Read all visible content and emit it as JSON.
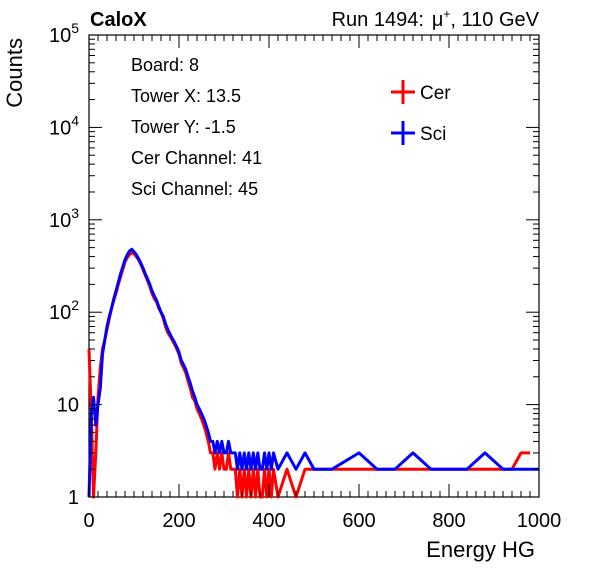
{
  "header": {
    "experiment": "CaloX",
    "run": "Run 1494:",
    "beam_particle": "μ",
    "beam_charge": "+",
    "beam_energy": ", 110 GeV"
  },
  "info_box": {
    "lines": [
      "Board: 8",
      "Tower X: 13.5",
      "Tower Y: -1.5",
      "Cer Channel: 41",
      "Sci Channel: 45"
    ]
  },
  "colors": {
    "cer": "#ff0000",
    "sci": "#0000ff",
    "axis": "#000000"
  },
  "chart_data": {
    "type": "line",
    "title": "",
    "xlabel": "Energy HG",
    "ylabel": "Counts",
    "xlim": [
      0,
      1000
    ],
    "ylim": [
      1,
      100000
    ],
    "y_scale": "log",
    "grid": false,
    "legend_position": "top-right",
    "x_ticks": [
      "0",
      "200",
      "400",
      "600",
      "800",
      "1000"
    ],
    "y_ticks": [
      {
        "base": "1",
        "exp": ""
      },
      {
        "base": "10",
        "exp": ""
      },
      {
        "base": "10",
        "exp": "2"
      },
      {
        "base": "10",
        "exp": "3"
      },
      {
        "base": "10",
        "exp": "4"
      },
      {
        "base": "10",
        "exp": "5"
      }
    ],
    "series": [
      {
        "name": "Cer",
        "color": "#ff0000",
        "x": [
          0,
          5,
          10,
          15,
          20,
          25,
          30,
          35,
          40,
          45,
          50,
          55,
          60,
          65,
          70,
          75,
          80,
          85,
          90,
          95,
          100,
          105,
          110,
          115,
          120,
          125,
          130,
          135,
          140,
          145,
          150,
          155,
          160,
          165,
          170,
          175,
          180,
          185,
          190,
          195,
          200,
          205,
          210,
          215,
          220,
          225,
          230,
          235,
          240,
          245,
          250,
          255,
          260,
          265,
          270,
          275,
          280,
          285,
          290,
          295,
          300,
          305,
          310,
          315,
          320,
          325,
          330,
          335,
          340,
          345,
          350,
          355,
          360,
          365,
          370,
          375,
          380,
          385,
          390,
          395,
          400,
          405,
          410,
          420,
          440,
          460,
          480,
          500,
          540,
          940,
          960,
          980
        ],
        "y": [
          40,
          8,
          1,
          3,
          12,
          25,
          40,
          50,
          65,
          85,
          110,
          135,
          160,
          200,
          240,
          290,
          350,
          390,
          420,
          440,
          430,
          400,
          370,
          330,
          290,
          250,
          220,
          190,
          160,
          140,
          130,
          110,
          100,
          85,
          70,
          60,
          55,
          50,
          45,
          40,
          35,
          28,
          25,
          22,
          18,
          15,
          12,
          11,
          9,
          8,
          7,
          6,
          5,
          4,
          3,
          3,
          2,
          3,
          2,
          3,
          2,
          2,
          3,
          2,
          2,
          2,
          1,
          2,
          1,
          2,
          1,
          2,
          1,
          2,
          1,
          2,
          1,
          1,
          2,
          1,
          2,
          1,
          2,
          1,
          2,
          1,
          2,
          2,
          2,
          2,
          3,
          3
        ]
      },
      {
        "name": "Sci",
        "color": "#0000ff",
        "x": [
          0,
          5,
          10,
          15,
          20,
          25,
          30,
          35,
          40,
          45,
          50,
          55,
          60,
          65,
          70,
          75,
          80,
          85,
          90,
          95,
          100,
          105,
          110,
          115,
          120,
          125,
          130,
          135,
          140,
          145,
          150,
          155,
          160,
          165,
          170,
          175,
          180,
          185,
          190,
          195,
          200,
          205,
          210,
          215,
          220,
          225,
          230,
          235,
          240,
          245,
          250,
          255,
          260,
          265,
          270,
          275,
          280,
          285,
          290,
          295,
          300,
          305,
          310,
          315,
          320,
          325,
          330,
          335,
          340,
          345,
          350,
          355,
          360,
          365,
          370,
          375,
          380,
          385,
          390,
          395,
          400,
          405,
          410,
          420,
          440,
          460,
          480,
          500,
          540,
          600,
          640,
          680,
          720,
          760,
          800,
          840,
          880,
          920,
          960,
          1000
        ],
        "y": [
          1,
          8,
          12,
          6,
          10,
          15,
          35,
          50,
          70,
          90,
          110,
          140,
          170,
          210,
          260,
          310,
          370,
          420,
          460,
          480,
          450,
          420,
          380,
          340,
          300,
          260,
          230,
          200,
          170,
          150,
          135,
          115,
          100,
          90,
          75,
          65,
          58,
          52,
          47,
          42,
          37,
          30,
          27,
          24,
          20,
          17,
          14,
          12,
          10,
          9,
          8,
          7,
          6,
          5,
          4,
          4,
          3,
          4,
          3,
          4,
          3,
          3,
          4,
          3,
          3,
          3,
          2,
          3,
          2,
          3,
          2,
          3,
          2,
          3,
          2,
          3,
          2,
          2,
          3,
          2,
          3,
          2,
          3,
          2,
          3,
          2,
          3,
          2,
          2,
          3,
          2,
          2,
          3,
          2,
          2,
          2,
          3,
          2,
          2,
          2
        ]
      }
    ]
  }
}
